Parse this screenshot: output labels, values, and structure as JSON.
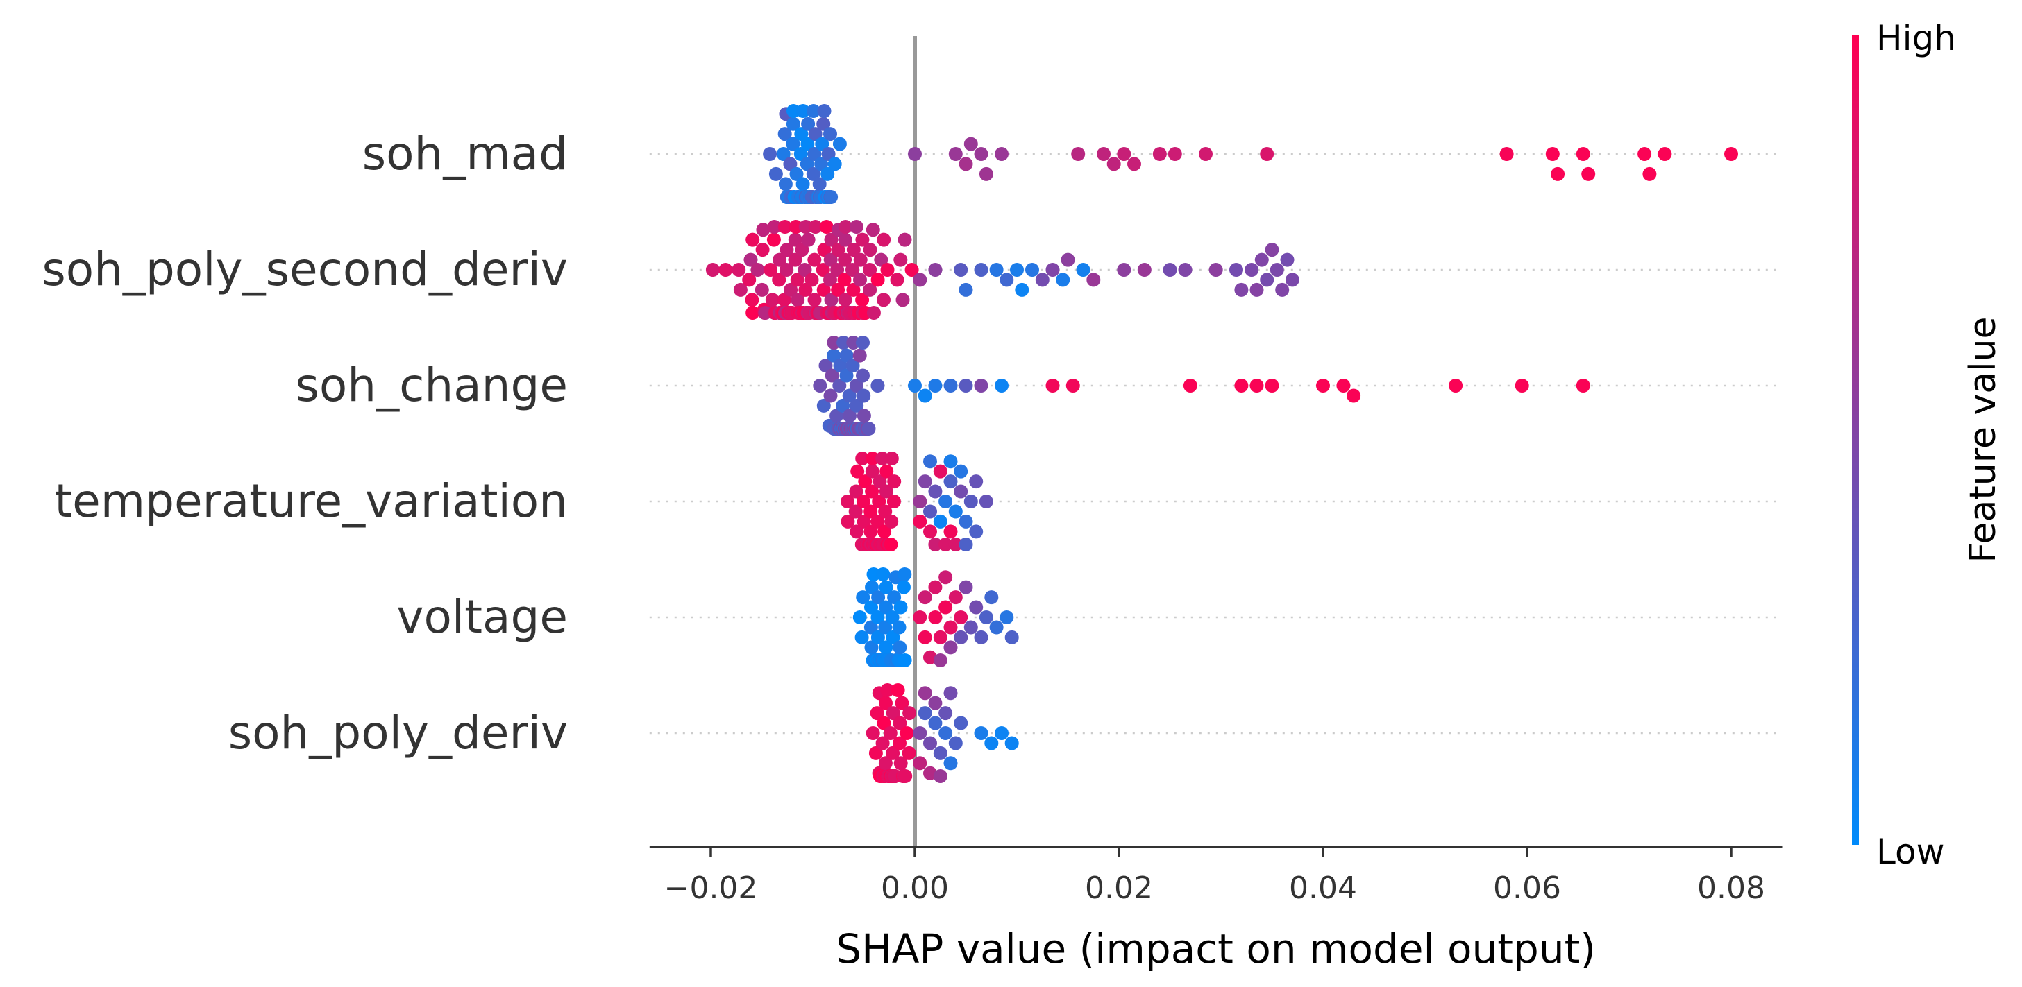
{
  "chart_data": {
    "type": "scatter",
    "subtype": "shap-beeswarm",
    "title": "",
    "xlabel": "SHAP value (impact on model output)",
    "ylabel": "",
    "xlim": [
      -0.026,
      0.085
    ],
    "xticks": [
      -0.02,
      0.0,
      0.02,
      0.04,
      0.06,
      0.08
    ],
    "xtick_labels": [
      "−0.02",
      "0.00",
      "0.02",
      "0.04",
      "0.06",
      "0.08"
    ],
    "zero_line": 0.0,
    "grid": false,
    "colorbar": {
      "label": "Feature value",
      "high_label": "High",
      "low_label": "Low",
      "low_color": "#008bfb",
      "high_color": "#ff0052"
    },
    "features": [
      {
        "name": "soh_mad",
        "core": {
          "center": -0.0105,
          "spread": 0.0045,
          "count": 95,
          "color_low": 0.0,
          "color_high": 0.35
        },
        "points": [
          [
            0.0,
            0.55
          ],
          [
            0.004,
            0.6
          ],
          [
            0.005,
            0.65
          ],
          [
            0.0055,
            0.6
          ],
          [
            0.0065,
            0.6
          ],
          [
            0.007,
            0.62
          ],
          [
            0.0085,
            0.6
          ],
          [
            0.016,
            0.72
          ],
          [
            0.0185,
            0.75
          ],
          [
            0.0195,
            0.75
          ],
          [
            0.0205,
            0.78
          ],
          [
            0.0215,
            0.78
          ],
          [
            0.024,
            0.8
          ],
          [
            0.0255,
            0.8
          ],
          [
            0.0285,
            0.82
          ],
          [
            0.0345,
            0.85
          ],
          [
            0.058,
            0.97
          ],
          [
            0.0625,
            0.98
          ],
          [
            0.063,
            0.98
          ],
          [
            0.0655,
            0.98
          ],
          [
            0.066,
            0.98
          ],
          [
            0.0715,
            0.98
          ],
          [
            0.072,
            0.98
          ],
          [
            0.0735,
            0.98
          ],
          [
            0.08,
            0.98
          ]
        ]
      },
      {
        "name": "soh_poly_second_deriv",
        "core": {
          "center": -0.009,
          "spread": 0.0115,
          "count": 170,
          "color_low": 0.7,
          "color_high": 1.0
        },
        "points": [
          [
            0.0005,
            0.6
          ],
          [
            0.002,
            0.55
          ],
          [
            0.0045,
            0.35
          ],
          [
            0.005,
            0.2
          ],
          [
            0.0065,
            0.3
          ],
          [
            0.008,
            0.15
          ],
          [
            0.009,
            0.25
          ],
          [
            0.01,
            0.1
          ],
          [
            0.0105,
            0.05
          ],
          [
            0.0115,
            0.15
          ],
          [
            0.0125,
            0.45
          ],
          [
            0.0135,
            0.5
          ],
          [
            0.0145,
            0.1
          ],
          [
            0.015,
            0.55
          ],
          [
            0.0165,
            0.08
          ],
          [
            0.0175,
            0.6
          ],
          [
            0.0205,
            0.55
          ],
          [
            0.0225,
            0.6
          ],
          [
            0.025,
            0.45
          ],
          [
            0.0265,
            0.5
          ],
          [
            0.0295,
            0.55
          ],
          [
            0.0315,
            0.45
          ],
          [
            0.032,
            0.5
          ],
          [
            0.033,
            0.48
          ],
          [
            0.034,
            0.5
          ],
          [
            0.035,
            0.52
          ],
          [
            0.0355,
            0.48
          ],
          [
            0.036,
            0.5
          ],
          [
            0.0365,
            0.45
          ],
          [
            0.037,
            0.48
          ],
          [
            0.0335,
            0.52
          ],
          [
            0.0345,
            0.46
          ]
        ]
      },
      {
        "name": "soh_change",
        "core": {
          "center": -0.0065,
          "spread": 0.004,
          "count": 80,
          "color_low": 0.2,
          "color_high": 0.55
        },
        "points": [
          [
            0.0,
            0.1
          ],
          [
            0.001,
            0.05
          ],
          [
            0.002,
            0.12
          ],
          [
            0.0035,
            0.2
          ],
          [
            0.005,
            0.35
          ],
          [
            0.0065,
            0.5
          ],
          [
            0.0085,
            0.05
          ],
          [
            0.0135,
            0.95
          ],
          [
            0.0155,
            0.95
          ],
          [
            0.027,
            0.98
          ],
          [
            0.032,
            0.98
          ],
          [
            0.0335,
            0.98
          ],
          [
            0.035,
            0.98
          ],
          [
            0.04,
            0.98
          ],
          [
            0.042,
            0.98
          ],
          [
            0.043,
            0.98
          ],
          [
            0.053,
            0.98
          ],
          [
            0.0595,
            0.98
          ],
          [
            0.0655,
            0.98
          ]
        ]
      },
      {
        "name": "temperature_variation",
        "core": {
          "center": -0.0045,
          "spread": 0.0035,
          "count": 60,
          "color_low": 0.85,
          "color_high": 1.0
        },
        "points": [
          [
            0.0005,
            0.6
          ],
          [
            0.001,
            0.5
          ],
          [
            0.0015,
            0.35
          ],
          [
            0.002,
            0.4
          ],
          [
            0.0025,
            0.05
          ],
          [
            0.003,
            0.15
          ],
          [
            0.0035,
            0.3
          ],
          [
            0.004,
            0.1
          ],
          [
            0.0045,
            0.45
          ],
          [
            0.005,
            0.2
          ],
          [
            0.0055,
            0.35
          ],
          [
            0.006,
            0.4
          ],
          [
            0.007,
            0.4
          ],
          [
            0.0025,
            0.9
          ],
          [
            0.003,
            0.85
          ],
          [
            0.0035,
            0.95
          ],
          [
            0.002,
            0.8
          ],
          [
            0.004,
            0.85
          ],
          [
            0.0015,
            0.9
          ],
          [
            0.0005,
            0.95
          ],
          [
            0.0035,
            0.1
          ],
          [
            0.0045,
            0.15
          ],
          [
            0.005,
            0.3
          ],
          [
            0.0015,
            0.2
          ],
          [
            0.006,
            0.3
          ]
        ]
      },
      {
        "name": "voltage",
        "core": {
          "center": -0.003,
          "spread": 0.0035,
          "count": 65,
          "color_low": 0.0,
          "color_high": 0.12
        },
        "points": [
          [
            0.0005,
            0.9
          ],
          [
            0.001,
            0.95
          ],
          [
            0.0015,
            0.85
          ],
          [
            0.002,
            0.95
          ],
          [
            0.0025,
            0.9
          ],
          [
            0.003,
            0.95
          ],
          [
            0.0035,
            0.9
          ],
          [
            0.004,
            0.85
          ],
          [
            0.001,
            0.8
          ],
          [
            0.002,
            0.85
          ],
          [
            0.003,
            0.8
          ],
          [
            0.0045,
            0.9
          ],
          [
            0.0055,
            0.4
          ],
          [
            0.006,
            0.45
          ],
          [
            0.0065,
            0.35
          ],
          [
            0.007,
            0.3
          ],
          [
            0.0075,
            0.25
          ],
          [
            0.008,
            0.2
          ],
          [
            0.009,
            0.15
          ],
          [
            0.0095,
            0.3
          ],
          [
            0.0045,
            0.4
          ],
          [
            0.005,
            0.5
          ],
          [
            0.0035,
            0.55
          ],
          [
            0.0025,
            0.6
          ]
        ]
      },
      {
        "name": "soh_poly_deriv",
        "core": {
          "center": -0.0025,
          "spread": 0.0025,
          "count": 45,
          "color_low": 0.85,
          "color_high": 1.0
        },
        "points": [
          [
            0.0005,
            0.5
          ],
          [
            0.001,
            0.3
          ],
          [
            0.0015,
            0.45
          ],
          [
            0.002,
            0.25
          ],
          [
            0.0025,
            0.35
          ],
          [
            0.003,
            0.2
          ],
          [
            0.0035,
            0.15
          ],
          [
            0.004,
            0.3
          ],
          [
            0.001,
            0.6
          ],
          [
            0.002,
            0.55
          ],
          [
            0.0025,
            0.6
          ],
          [
            0.003,
            0.4
          ],
          [
            0.0015,
            0.7
          ],
          [
            0.0005,
            0.75
          ],
          [
            0.0065,
            0.1
          ],
          [
            0.0075,
            0.05
          ],
          [
            0.0085,
            0.05
          ],
          [
            0.0095,
            0.05
          ],
          [
            0.0035,
            0.45
          ],
          [
            0.0045,
            0.3
          ]
        ]
      }
    ]
  }
}
